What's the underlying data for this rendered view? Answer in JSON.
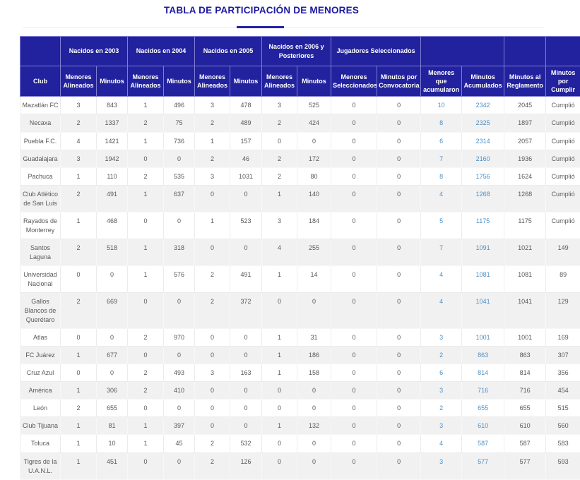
{
  "page": {
    "title": "TABLA DE PARTICIPACIÓN DE MENORES"
  },
  "colors": {
    "title_text": "#1c18a0",
    "header_background": "#22229e",
    "header_text": "#ffffff",
    "body_text": "#58595b",
    "accent_link_blue": "#4d8fc4",
    "stripe_row_background": "#f1f1f2"
  },
  "table": {
    "group_headers": [
      {
        "label": "",
        "colspan": 1
      },
      {
        "label": "Nacidos en 2003",
        "colspan": 2
      },
      {
        "label": "Nacidos en 2004",
        "colspan": 2
      },
      {
        "label": "Nacidos en 2005",
        "colspan": 2
      },
      {
        "label": "Nacidos en 2006 y Posteriores",
        "colspan": 2
      },
      {
        "label": "Jugadores Seleccionados",
        "colspan": 2
      },
      {
        "label": "",
        "colspan": 2
      },
      {
        "label": "",
        "colspan": 1
      },
      {
        "label": "",
        "colspan": 1
      }
    ],
    "columns": [
      "Club",
      "Menores Alineados",
      "Minutos",
      "Menores Alineados",
      "Minutos",
      "Menores Alineados",
      "Minutos",
      "Menores Alineados",
      "Minutos",
      "Menores Seleccionados",
      "Minutos por Convocatoria",
      "Menores que acumularon",
      "Minutos Acumulados",
      "Minutos al Reglamento",
      "Minutos por Cumplir"
    ],
    "accent_value_columns": [
      10,
      11
    ],
    "rows": [
      {
        "club": "Mazatlán FC",
        "values": [
          "3",
          "843",
          "1",
          "496",
          "3",
          "478",
          "3",
          "525",
          "0",
          "0",
          "10",
          "2342",
          "2045",
          "Cumplió"
        ]
      },
      {
        "club": "Necaxa",
        "values": [
          "2",
          "1337",
          "2",
          "75",
          "2",
          "489",
          "2",
          "424",
          "0",
          "0",
          "8",
          "2325",
          "1897",
          "Cumplió"
        ]
      },
      {
        "club": "Puebla F.C.",
        "values": [
          "4",
          "1421",
          "1",
          "736",
          "1",
          "157",
          "0",
          "0",
          "0",
          "0",
          "6",
          "2314",
          "2057",
          "Cumplió"
        ]
      },
      {
        "club": "Guadalajara",
        "values": [
          "3",
          "1942",
          "0",
          "0",
          "2",
          "46",
          "2",
          "172",
          "0",
          "0",
          "7",
          "2160",
          "1936",
          "Cumplió"
        ]
      },
      {
        "club": "Pachuca",
        "values": [
          "1",
          "110",
          "2",
          "535",
          "3",
          "1031",
          "2",
          "80",
          "0",
          "0",
          "8",
          "1756",
          "1624",
          "Cumplió"
        ]
      },
      {
        "club": "Club Atlético de San Luis",
        "values": [
          "2",
          "491",
          "1",
          "637",
          "0",
          "0",
          "1",
          "140",
          "0",
          "0",
          "4",
          "1268",
          "1268",
          "Cumplió"
        ]
      },
      {
        "club": "Rayados de Monterrey",
        "values": [
          "1",
          "468",
          "0",
          "0",
          "1",
          "523",
          "3",
          "184",
          "0",
          "0",
          "5",
          "1175",
          "1175",
          "Cumplió"
        ]
      },
      {
        "club": "Santos Laguna",
        "values": [
          "2",
          "518",
          "1",
          "318",
          "0",
          "0",
          "4",
          "255",
          "0",
          "0",
          "7",
          "1091",
          "1021",
          "149"
        ]
      },
      {
        "club": "Universidad Nacional",
        "values": [
          "0",
          "0",
          "1",
          "576",
          "2",
          "491",
          "1",
          "14",
          "0",
          "0",
          "4",
          "1081",
          "1081",
          "89"
        ]
      },
      {
        "club": "Gallos Blancos de Querétaro",
        "values": [
          "2",
          "669",
          "0",
          "0",
          "2",
          "372",
          "0",
          "0",
          "0",
          "0",
          "4",
          "1041",
          "1041",
          "129"
        ]
      },
      {
        "club": "Atlas",
        "values": [
          "0",
          "0",
          "2",
          "970",
          "0",
          "0",
          "1",
          "31",
          "0",
          "0",
          "3",
          "1001",
          "1001",
          "169"
        ]
      },
      {
        "club": "FC Juárez",
        "values": [
          "1",
          "677",
          "0",
          "0",
          "0",
          "0",
          "1",
          "186",
          "0",
          "0",
          "2",
          "863",
          "863",
          "307"
        ]
      },
      {
        "club": "Cruz Azul",
        "values": [
          "0",
          "0",
          "2",
          "493",
          "3",
          "163",
          "1",
          "158",
          "0",
          "0",
          "6",
          "814",
          "814",
          "356"
        ]
      },
      {
        "club": "América",
        "values": [
          "1",
          "306",
          "2",
          "410",
          "0",
          "0",
          "0",
          "0",
          "0",
          "0",
          "3",
          "716",
          "716",
          "454"
        ]
      },
      {
        "club": "León",
        "values": [
          "2",
          "655",
          "0",
          "0",
          "0",
          "0",
          "0",
          "0",
          "0",
          "0",
          "2",
          "655",
          "655",
          "515"
        ]
      },
      {
        "club": "Club Tijuana",
        "values": [
          "1",
          "81",
          "1",
          "397",
          "0",
          "0",
          "1",
          "132",
          "0",
          "0",
          "3",
          "610",
          "610",
          "560"
        ]
      },
      {
        "club": "Toluca",
        "values": [
          "1",
          "10",
          "1",
          "45",
          "2",
          "532",
          "0",
          "0",
          "0",
          "0",
          "4",
          "587",
          "587",
          "583"
        ]
      },
      {
        "club": "Tigres de la U.A.N.L.",
        "values": [
          "1",
          "451",
          "0",
          "0",
          "2",
          "126",
          "0",
          "0",
          "0",
          "0",
          "3",
          "577",
          "577",
          "593"
        ]
      }
    ]
  }
}
